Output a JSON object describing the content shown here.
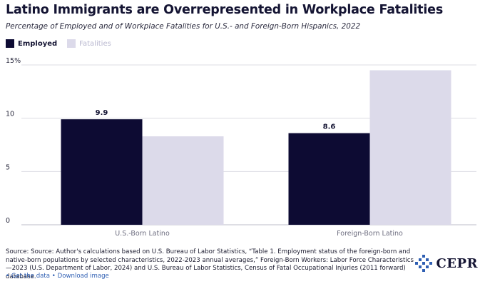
{
  "title": "Latino Immigrants are Overrepresented in Workplace Fatalities",
  "subtitle": "Percentage of Employed and of Workplace Fatalities for U.S.- and Foreign-Born Hispanics, 2022",
  "colors": {
    "employed": "#0d0b33",
    "fatalities": "#dcdaea"
  },
  "chart_data": {
    "type": "bar",
    "categories": [
      "U.S.-Born Latino",
      "Foreign-Born Latino"
    ],
    "series": [
      {
        "name": "Employed",
        "values": [
          9.9,
          8.6
        ],
        "data_labels": [
          "9.9",
          "8.6"
        ]
      },
      {
        "name": "Fatalities",
        "values": [
          8.3,
          14.5
        ]
      }
    ],
    "ylim": [
      0,
      15
    ],
    "yticks": [
      0,
      5,
      10,
      15
    ],
    "ytick_labels": [
      "0",
      "5",
      "10",
      "15%"
    ],
    "grid": true,
    "legend_position": "top-left"
  },
  "source": {
    "text": "Source: Source: Author's calculations based on U.S. Bureau of Labor Statistics, “Table 1. Employment status of the foreign-born and native-born populations by selected characteristics, 2022-2023 annual averages,” Foreign-Born Workers: Labor Force Characteristics—2023 (U.S. Department of Labor, 2024) and U.S. Bureau of Labor Statistics, Census of Fatal Occupational Injuries (2011 forward) database."
  },
  "links": {
    "get_data": "Get the data",
    "separator": "•",
    "download_image": "Download image"
  },
  "logo": {
    "text": "CEPR",
    "icon": "cepr-logo-icon"
  }
}
